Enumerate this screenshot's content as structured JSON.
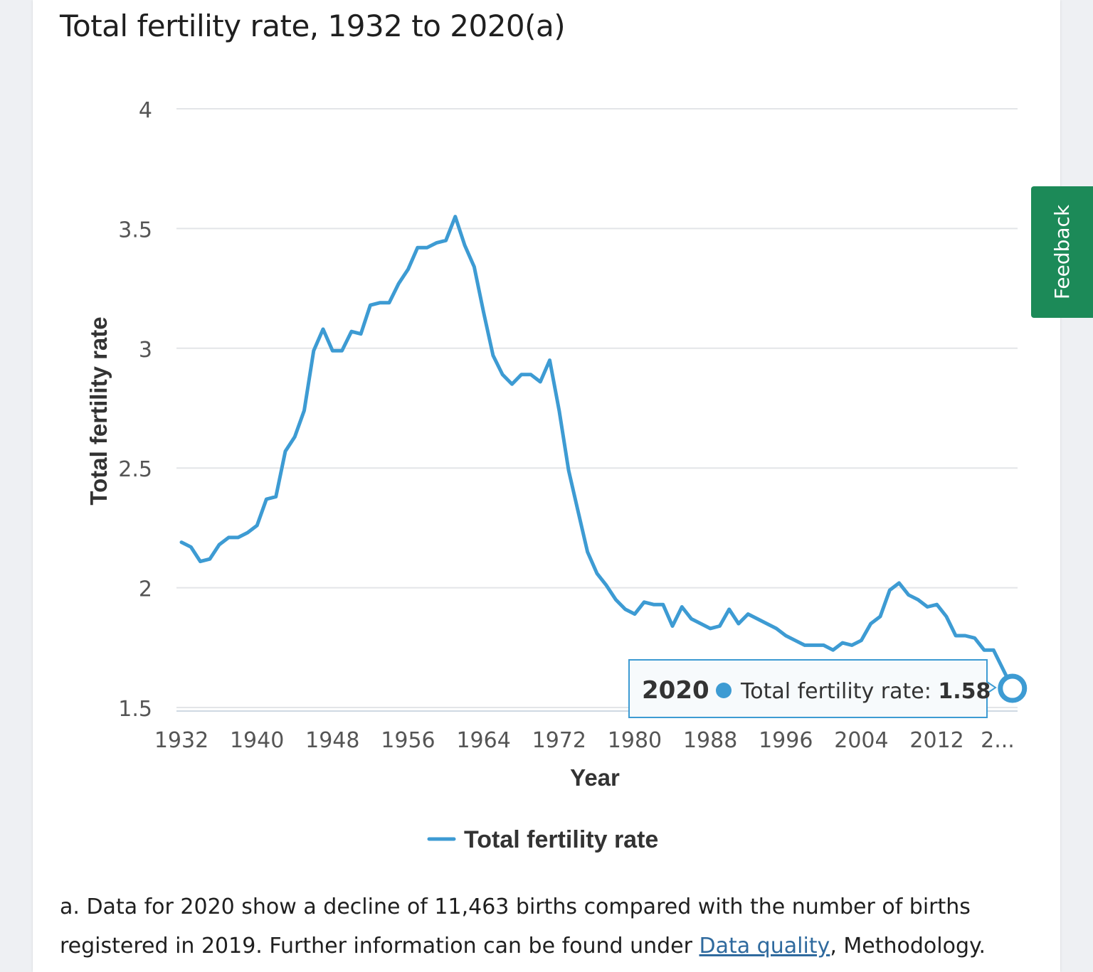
{
  "feedback_label": "Feedback",
  "footnote": {
    "text_before": "a. Data for 2020 show a decline of 11,463 births compared with the number of births registered in 2019. Further information can be found under ",
    "link_label": "Data quality",
    "text_after": ", Methodology."
  },
  "tooltip": {
    "year": "2020",
    "series": "Total fertility rate: ",
    "value": "1.58"
  },
  "colors": {
    "series": "#3d9bd3",
    "feedback": "#1c8a58",
    "grid": "#e3e5e8",
    "link": "#2f6a9e"
  },
  "chart_data": {
    "type": "line",
    "title": "Total fertility rate, 1932 to 2020(a)",
    "xlabel": "Year",
    "ylabel": "Total fertility rate",
    "ylim": [
      1.5,
      4
    ],
    "yticks": [
      "4",
      "3.5",
      "3",
      "2.5",
      "2",
      "1.5"
    ],
    "xticks": [
      "1932",
      "1940",
      "1948",
      "1956",
      "1964",
      "1972",
      "1980",
      "1988",
      "1996",
      "2004",
      "2012",
      "2..."
    ],
    "grid": true,
    "legend": "bottom",
    "series": [
      {
        "name": "Total fertility rate",
        "x": [
          1932,
          1933,
          1934,
          1935,
          1936,
          1937,
          1938,
          1939,
          1940,
          1941,
          1942,
          1943,
          1944,
          1945,
          1946,
          1947,
          1948,
          1949,
          1950,
          1951,
          1952,
          1953,
          1954,
          1955,
          1956,
          1957,
          1958,
          1959,
          1960,
          1961,
          1962,
          1963,
          1964,
          1965,
          1966,
          1967,
          1968,
          1969,
          1970,
          1971,
          1972,
          1973,
          1974,
          1975,
          1976,
          1977,
          1978,
          1979,
          1980,
          1981,
          1982,
          1983,
          1984,
          1985,
          1986,
          1987,
          1988,
          1989,
          1990,
          1991,
          1992,
          1993,
          1994,
          1995,
          1996,
          1997,
          1998,
          1999,
          2000,
          2001,
          2002,
          2003,
          2004,
          2005,
          2006,
          2007,
          2008,
          2009,
          2010,
          2011,
          2012,
          2013,
          2014,
          2015,
          2016,
          2017,
          2018,
          2019,
          2020
        ],
        "values": [
          2.19,
          2.17,
          2.11,
          2.12,
          2.18,
          2.21,
          2.21,
          2.23,
          2.26,
          2.37,
          2.38,
          2.57,
          2.63,
          2.74,
          2.99,
          3.08,
          2.99,
          2.99,
          3.07,
          3.06,
          3.18,
          3.19,
          3.19,
          3.27,
          3.33,
          3.42,
          3.42,
          3.44,
          3.45,
          3.55,
          3.43,
          3.34,
          3.15,
          2.97,
          2.89,
          2.85,
          2.89,
          2.89,
          2.86,
          2.95,
          2.74,
          2.49,
          2.32,
          2.15,
          2.06,
          2.01,
          1.95,
          1.91,
          1.89,
          1.94,
          1.93,
          1.93,
          1.84,
          1.92,
          1.87,
          1.85,
          1.83,
          1.84,
          1.91,
          1.85,
          1.89,
          1.87,
          1.85,
          1.83,
          1.8,
          1.78,
          1.76,
          1.76,
          1.76,
          1.74,
          1.77,
          1.76,
          1.78,
          1.85,
          1.88,
          1.99,
          2.02,
          1.97,
          1.95,
          1.92,
          1.93,
          1.88,
          1.8,
          1.8,
          1.79,
          1.74,
          1.74,
          1.66,
          1.58
        ]
      }
    ]
  }
}
